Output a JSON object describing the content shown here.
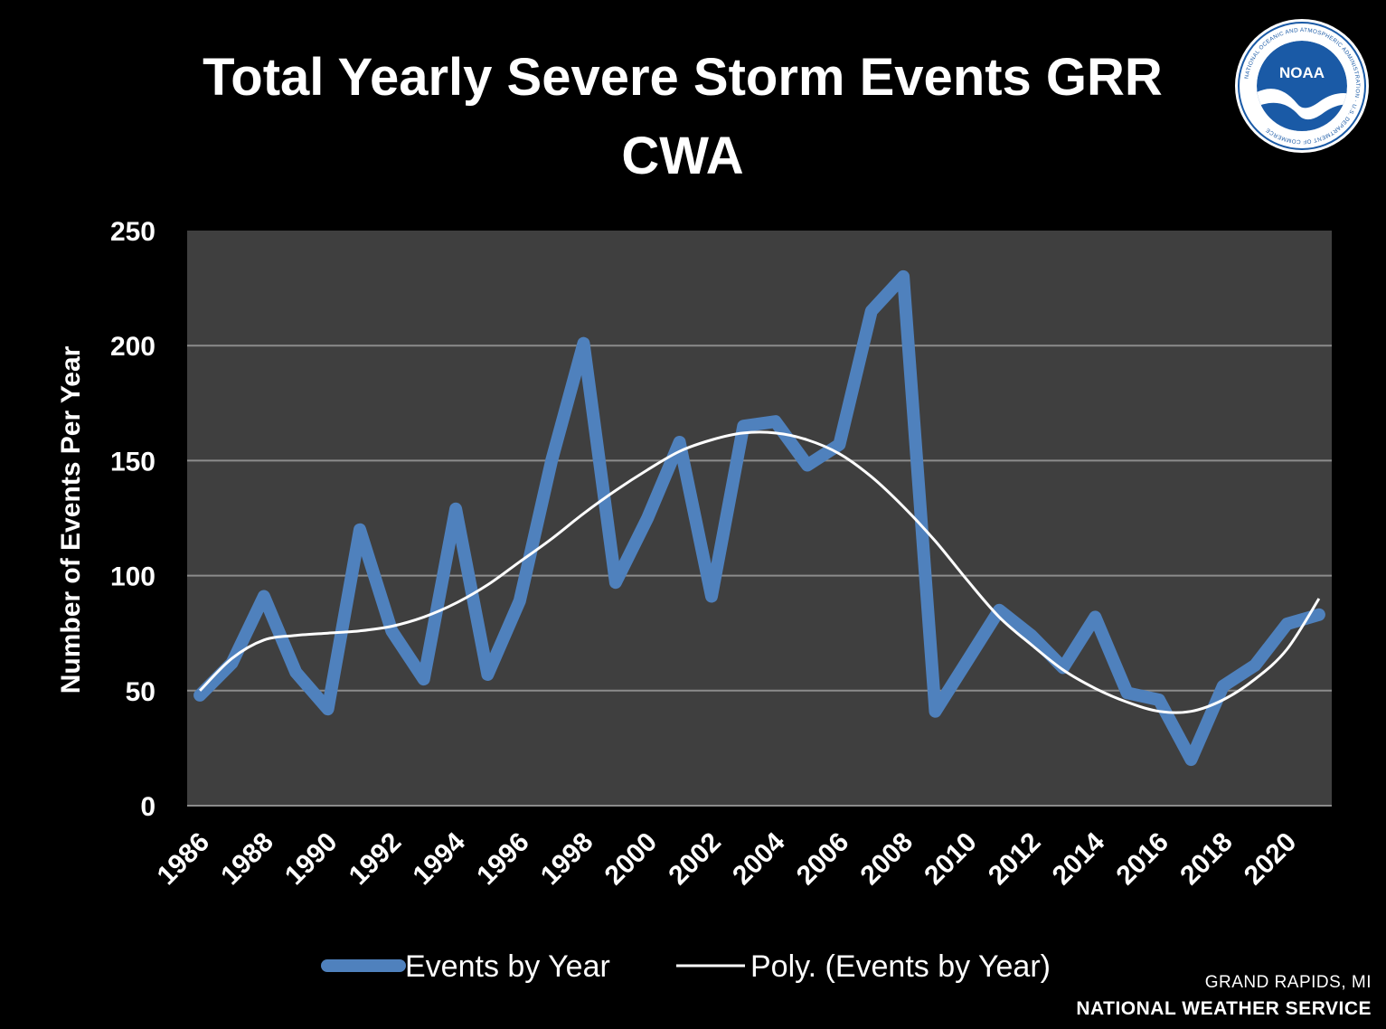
{
  "chart_data": {
    "type": "line",
    "title": [
      "Total Yearly Severe Storm Events GRR",
      "CWA"
    ],
    "xlabel": "",
    "ylabel": "Number of Events Per Year",
    "ylim": [
      0,
      250
    ],
    "yticks": [
      0,
      50,
      100,
      150,
      200,
      250
    ],
    "xticks": [
      1986,
      1988,
      1990,
      1992,
      1994,
      1996,
      1998,
      2000,
      2002,
      2004,
      2006,
      2008,
      2010,
      2012,
      2014,
      2016,
      2018,
      2020
    ],
    "x": [
      1986,
      1987,
      1988,
      1989,
      1990,
      1991,
      1992,
      1993,
      1994,
      1995,
      1996,
      1997,
      1998,
      1999,
      2000,
      2001,
      2002,
      2003,
      2004,
      2005,
      2006,
      2007,
      2008,
      2009,
      2010,
      2011,
      2012,
      2013,
      2014,
      2015,
      2016,
      2017,
      2018,
      2019,
      2020,
      2021
    ],
    "grid": true,
    "legend_position": "bottom",
    "background": "#3f3f3f",
    "series": [
      {
        "name": "Events by Year",
        "color": "#4f81bd",
        "values": [
          48,
          62,
          91,
          58,
          42,
          120,
          76,
          55,
          129,
          57,
          89,
          150,
          201,
          97,
          125,
          158,
          91,
          165,
          167,
          148,
          157,
          215,
          230,
          41,
          63,
          85,
          74,
          60,
          82,
          49,
          46,
          20,
          52,
          61,
          79,
          83
        ]
      },
      {
        "name": "Poly. (Events by Year)",
        "color": "#ffffff",
        "values": [
          50,
          64,
          72,
          74,
          75,
          76,
          78,
          82,
          88,
          96,
          106,
          116,
          127,
          137,
          146,
          154,
          159,
          162,
          162,
          159,
          153,
          143,
          130,
          115,
          98,
          82,
          70,
          59,
          51,
          45,
          41,
          41,
          46,
          55,
          68,
          90
        ]
      }
    ]
  },
  "logo": {
    "icon": "noaa-logo",
    "text": "NOAA",
    "ring_text": "NATIONAL OCEANIC AND ATMOSPHERIC ADMINISTRATION · U.S. DEPARTMENT OF COMMERCE"
  },
  "credit": {
    "location": "GRAND RAPIDS, MI",
    "organization": "NATIONAL WEATHER SERVICE"
  }
}
